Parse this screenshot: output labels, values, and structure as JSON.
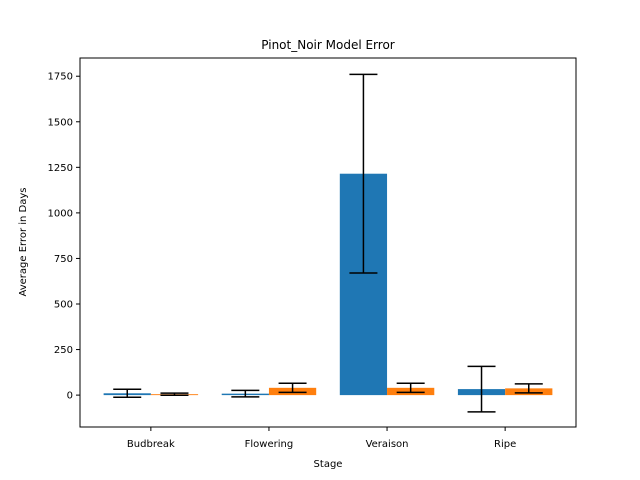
{
  "chart_data": {
    "type": "bar",
    "title": "Pinot_Noir Model Error",
    "xlabel": "Stage",
    "ylabel": "Average Error in Days",
    "categories": [
      "Budbreak",
      "Flowering",
      "Veraison",
      "Ripe"
    ],
    "ylim": [
      -175,
      1850
    ],
    "yticks": [
      0,
      250,
      500,
      750,
      1000,
      1250,
      1500,
      1750
    ],
    "grid": false,
    "legend": "none",
    "series": [
      {
        "color": "#1f77b4",
        "values": [
          10,
          8,
          1215,
          33
        ],
        "error": [
          22,
          18,
          545,
          125
        ]
      },
      {
        "color": "#ff7f0e",
        "values": [
          5,
          40,
          40,
          37
        ],
        "error": [
          6,
          25,
          25,
          25
        ]
      }
    ]
  }
}
